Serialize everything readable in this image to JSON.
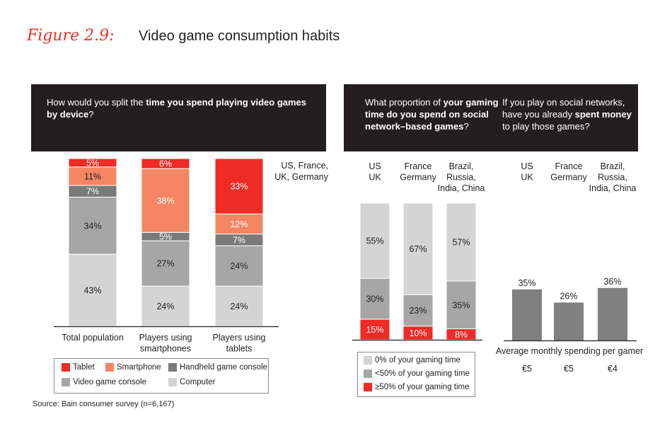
{
  "figure": {
    "label": "Figure 2.9:",
    "title": "Video game consumption habits"
  },
  "panel1": {
    "question_pre": "How would you split the ",
    "question_bold": "time you spend playing video games by device",
    "question_post": "?",
    "note": "US, France,\nUK, Germany"
  },
  "panel2": {
    "q1_pre": "What proportion of ",
    "q1_bold": "your gaming time do you spend on social network–based games",
    "q1_post": "?",
    "q2_pre": "If you play on social networks, have you already ",
    "q2_bold": "spent money",
    "q2_post": " to play those games?",
    "avg_label": "Average monthly spending per gamer"
  },
  "colors": {
    "tablet": "#ee2b24",
    "smartphone": "#f48663",
    "handheld": "#7a7a7a",
    "console": "#a6a6a6",
    "computer": "#d4d4d4",
    "social_bar": "#808080"
  },
  "legend1": [
    {
      "label": "Tablet",
      "color": "#ee2b24"
    },
    {
      "label": "Smartphone",
      "color": "#f48663"
    },
    {
      "label": "Handheld game console",
      "color": "#7a7a7a"
    },
    {
      "label": "Video game console",
      "color": "#a6a6a6"
    },
    {
      "label": "Computer",
      "color": "#d4d4d4"
    }
  ],
  "legend2": [
    {
      "label": "0% of your gaming time",
      "color": "#d4d4d4"
    },
    {
      "label": "<50% of your gaming time",
      "color": "#a6a6a6"
    },
    {
      "label": "≥50% of your gaming time",
      "color": "#ee2b24"
    }
  ],
  "source": "Source: Bain consumer survey (n=6,167)",
  "chart_data": [
    {
      "type": "bar",
      "stacked": true,
      "categories": [
        "Total population",
        "Players using smartphones",
        "Players using tablets"
      ],
      "series": [
        {
          "name": "Computer",
          "values": [
            43,
            24,
            24
          ]
        },
        {
          "name": "Video game console",
          "values": [
            34,
            27,
            24
          ]
        },
        {
          "name": "Handheld game console",
          "values": [
            7,
            5,
            7
          ]
        },
        {
          "name": "Smartphone",
          "values": [
            11,
            38,
            12
          ]
        },
        {
          "name": "Tablet",
          "values": [
            5,
            6,
            33
          ]
        }
      ],
      "labels": [
        [
          "43%",
          "34%",
          "7%",
          "11%",
          "5%"
        ],
        [
          "24%",
          "27%",
          "5%",
          "38%",
          "6%"
        ],
        [
          "24%",
          "24%",
          "7%",
          "12%",
          "33%"
        ]
      ]
    },
    {
      "type": "bar",
      "stacked": true,
      "categories": [
        "US\nUK",
        "France\nGermany",
        "Brazil,\nRussia,\nIndia, China"
      ],
      "series": [
        {
          "name": "≥50% of your gaming time",
          "values": [
            15,
            10,
            8
          ]
        },
        {
          "name": "<50% of your gaming time",
          "values": [
            30,
            23,
            35
          ]
        },
        {
          "name": "0% of your gaming time",
          "values": [
            55,
            67,
            57
          ]
        }
      ]
    },
    {
      "type": "bar",
      "categories": [
        "US\nUK",
        "France\nGermany",
        "Brazil,\nRussia,\nIndia, China"
      ],
      "values": [
        35,
        26,
        36
      ],
      "value_labels": [
        "35%",
        "26%",
        "36%"
      ],
      "spending": [
        "€5",
        "€5",
        "€4"
      ]
    }
  ]
}
